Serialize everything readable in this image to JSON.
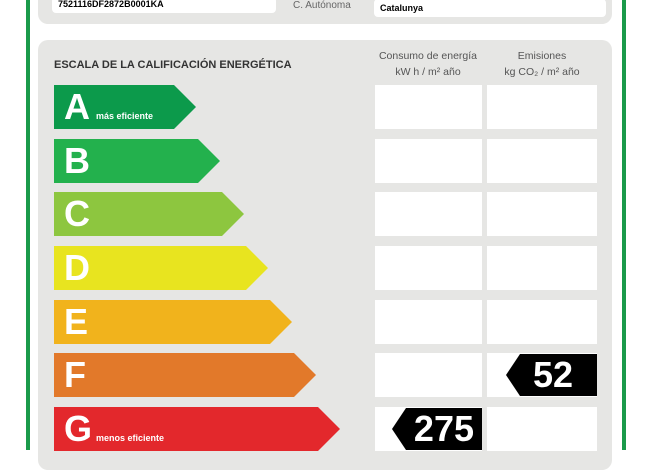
{
  "header": {
    "ref_catastral": "7521116DF2872B0001KA",
    "region_label": "C. Autónoma",
    "region_value": "Catalunya"
  },
  "scale": {
    "title": "ESCALA DE LA CALIFICACIÓN ENERGÉTICA",
    "col_energy": [
      "Consumo de energía",
      "kW h  / m² año"
    ],
    "col_emissions": [
      "Emisiones",
      "kg CO₂  / m² año"
    ],
    "classes": [
      {
        "letter": "A",
        "sub": "más eficiente",
        "color": "#0c9a4b"
      },
      {
        "letter": "B",
        "sub": "",
        "color": "#23b14d"
      },
      {
        "letter": "C",
        "sub": "",
        "color": "#8dc63f"
      },
      {
        "letter": "D",
        "sub": "",
        "color": "#e8e41f"
      },
      {
        "letter": "E",
        "sub": "",
        "color": "#f1b31c"
      },
      {
        "letter": "F",
        "sub": "",
        "color": "#e2792a"
      },
      {
        "letter": "G",
        "sub": "menos eficiente",
        "color": "#e3282c"
      }
    ]
  },
  "rating": {
    "energy_class": "G",
    "energy_value": "275",
    "emissions_class": "F",
    "emissions_value": "52"
  }
}
